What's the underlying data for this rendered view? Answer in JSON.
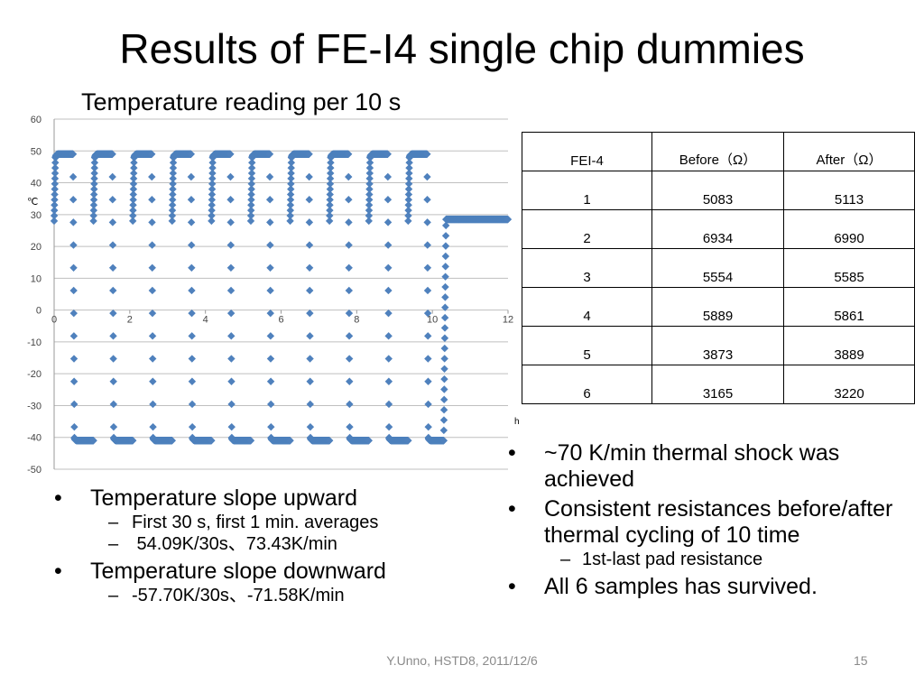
{
  "slide": {
    "title": "Results of FE-I4 single chip dummies",
    "footer": "Y.Unno, HSTD8, 2011/12/6",
    "page_number": "15"
  },
  "chart_data": {
    "type": "scatter",
    "title": "Temperature reading per 10 s",
    "ylabel": "℃",
    "xlabel": "h",
    "xlim": [
      0,
      12
    ],
    "ylim": [
      -50,
      60
    ],
    "x_ticks": [
      0,
      2,
      4,
      6,
      8,
      10,
      12
    ],
    "y_ticks": [
      -50,
      -40,
      -30,
      -20,
      -10,
      0,
      10,
      20,
      30,
      40,
      50,
      60
    ],
    "grid": "horizontal",
    "marker": "diamond",
    "color": "#4f81bd",
    "series": [
      {
        "name": "",
        "description_of_pattern": "",
        "cycles": 10,
        "cycle_period_h": 1.04,
        "first_cycle_start_h": 0,
        "hot_level": 49,
        "cold_level": -41,
        "hot_dwell_h": 0.5,
        "cold_dwell_h": 0.5,
        "final_level": 28.5,
        "final_start_h": 10.3,
        "final_end_h": 12.0
      }
    ]
  },
  "table": {
    "headers": [
      "FEI-4",
      "Before（Ω）",
      "After（Ω）"
    ],
    "rows": [
      [
        "1",
        "5083",
        "5113"
      ],
      [
        "2",
        "6934",
        "6990"
      ],
      [
        "3",
        "5554",
        "5585"
      ],
      [
        "4",
        "5889",
        "5861"
      ],
      [
        "5",
        "3873",
        "3889"
      ],
      [
        "6",
        "3165",
        "3220"
      ]
    ]
  },
  "left_bullets": {
    "b1": "Temperature slope upward",
    "b1_sub1": "First 30 s, first 1 min. averages",
    "b1_sub2": " 54.09K/30s、73.43K/min",
    "b2": "Temperature slope downward",
    "b2_sub1": "-57.70K/30s、-71.58K/min"
  },
  "right_bullets": {
    "b1": "~70 K/min thermal shock was achieved",
    "b2": "Consistent resistances before/after thermal cycling of 10 time",
    "b2_sub1": "1st-last pad resistance",
    "b3": "All 6 samples has survived."
  }
}
